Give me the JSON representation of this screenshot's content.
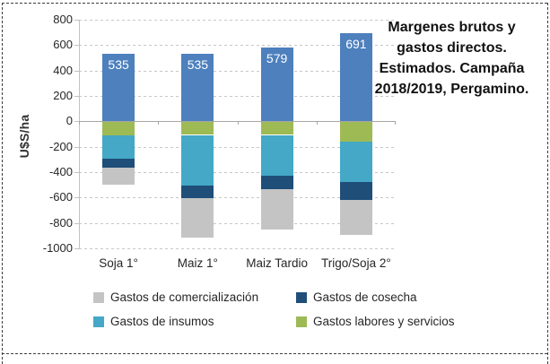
{
  "frame": {
    "style": "dashed page-break border",
    "border_color": "#3d3d3d",
    "background": "#ffffff"
  },
  "chart_data": {
    "type": "bar",
    "subtype": "stacked-column",
    "title_lines": [
      "Margenes brutos y",
      "gastos directos.",
      "Estimados. Campaña",
      "2018/2019, Pergamino."
    ],
    "title": "Margenes brutos y gastos directos. Estimados. Campaña 2018/2019, Pergamino.",
    "ylabel": "U$S/ha",
    "ylim": [
      -1000,
      800
    ],
    "yticks": [
      800,
      600,
      400,
      200,
      0,
      -200,
      -400,
      -600,
      -800,
      -1000
    ],
    "grid": true,
    "legend_position": "bottom",
    "categories": [
      "Soja 1°",
      "Maiz 1°",
      "Maiz Tardio",
      "Trigo/Soja 2°"
    ],
    "margin_series": {
      "name": "Margen bruto",
      "color": "#4d80bd",
      "values": [
        535,
        535,
        579,
        691
      ],
      "labels": [
        "535",
        "535",
        "579",
        "691"
      ],
      "label_color": "#ffffff"
    },
    "expense_series": [
      {
        "name": "Gastos labores y servicios",
        "color": "#9dba55",
        "values": [
          -105,
          -100,
          -100,
          -155
        ]
      },
      {
        "name": "Gastos de insumos",
        "color": "#44a8c6",
        "values": [
          -185,
          -400,
          -320,
          -315
        ]
      },
      {
        "name": "Gastos de cosecha",
        "color": "#1f4e79",
        "values": [
          -70,
          -100,
          -105,
          -140
        ]
      },
      {
        "name": "Gastos de comercialización",
        "color": "#c4c4c4",
        "values": [
          -135,
          -310,
          -320,
          -280
        ]
      }
    ],
    "legend": [
      {
        "label": "Gastos de comercialización",
        "color": "#c4c4c4"
      },
      {
        "label": "Gastos de cosecha",
        "color": "#1f4e79"
      },
      {
        "label": "Gastos de insumos",
        "color": "#44a8c6"
      },
      {
        "label": "Gastos labores y servicios",
        "color": "#9dba55"
      }
    ],
    "axis_colors": {
      "gridline": "#c7c7c7",
      "zero_line": "#a6a6a6",
      "axis_line": "#c2c2c2",
      "tick_text": "#262626"
    }
  }
}
